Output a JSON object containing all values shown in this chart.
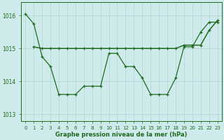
{
  "xlabel": "Graphe pression niveau de la mer (hPa)",
  "ylim": [
    1012.8,
    1016.4
  ],
  "xlim": [
    -0.5,
    23.5
  ],
  "yticks": [
    1013,
    1014,
    1015,
    1016
  ],
  "xticks": [
    0,
    1,
    2,
    3,
    4,
    5,
    6,
    7,
    8,
    9,
    10,
    11,
    12,
    13,
    14,
    15,
    16,
    17,
    18,
    19,
    20,
    21,
    22,
    23
  ],
  "bg_color": "#ceeaea",
  "line_color": "#1f6b1f",
  "grid_color": "#aed4d4",
  "line1_x": [
    0,
    1,
    2,
    3,
    4,
    5,
    6,
    7,
    8,
    9,
    10,
    11,
    12,
    13,
    14,
    15,
    16,
    17,
    18,
    19,
    20,
    21,
    22,
    23
  ],
  "line1_y": [
    1016.05,
    1015.75,
    1014.75,
    1014.45,
    1013.6,
    1013.6,
    1013.6,
    1013.85,
    1013.85,
    1013.85,
    1014.85,
    1014.85,
    1014.45,
    1014.45,
    1014.1,
    1013.6,
    1013.6,
    1013.6,
    1014.1,
    1015.05,
    1015.05,
    1015.5,
    1015.8,
    1015.8
  ],
  "line2_x": [
    1,
    2,
    3,
    4,
    5,
    6,
    7,
    8,
    9,
    10,
    11,
    12,
    13,
    14,
    15,
    16,
    17,
    18,
    19,
    20,
    21,
    22,
    23
  ],
  "line2_y": [
    1015.05,
    1015.0,
    1015.0,
    1015.0,
    1015.0,
    1015.0,
    1015.0,
    1015.0,
    1015.0,
    1015.0,
    1015.0,
    1015.0,
    1015.0,
    1015.0,
    1015.0,
    1015.0,
    1015.0,
    1015.0,
    1015.1,
    1015.1,
    1015.1,
    1015.55,
    1015.85
  ]
}
